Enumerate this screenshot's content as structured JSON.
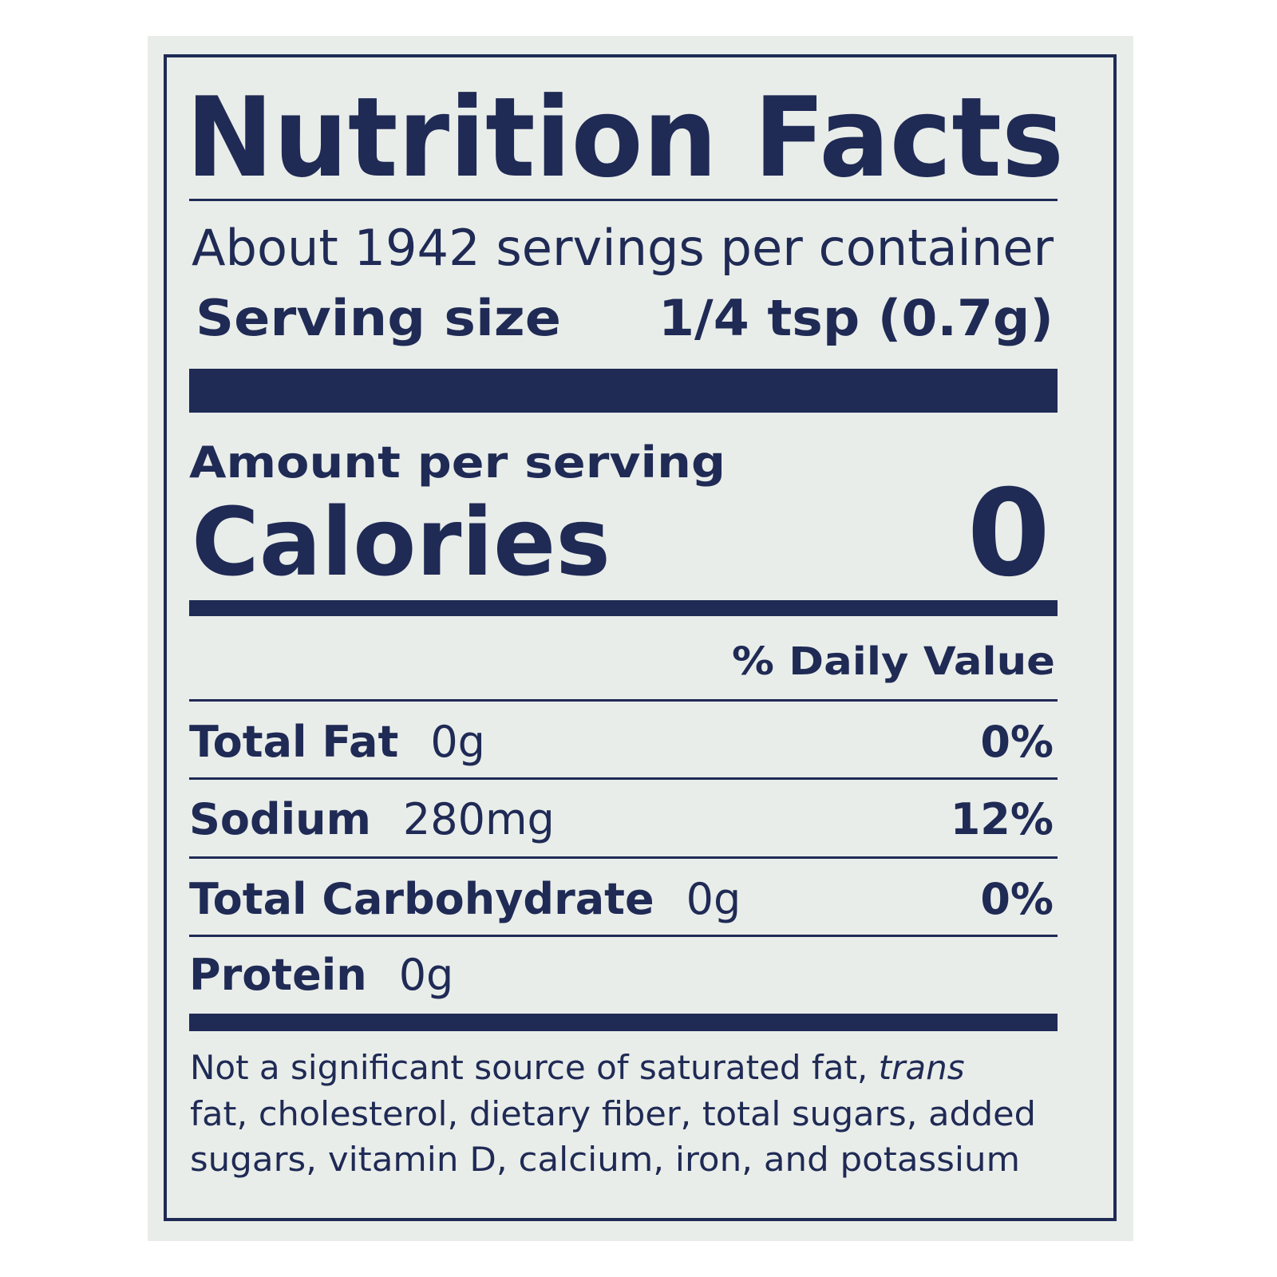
{
  "title": "Nutrition Facts",
  "servings": "About 1942 servings per container",
  "serving_size": {
    "label": "Serving size",
    "value": "1/4 tsp (0.7g)"
  },
  "amount_per_serving": "Amount per serving",
  "calories": {
    "label": "Calories",
    "value": "0"
  },
  "daily_value_header": "% Daily Value",
  "nutrients": [
    {
      "name": "Total Fat",
      "amount": "0g",
      "dv": "0%"
    },
    {
      "name": "Sodium",
      "amount": "280mg",
      "dv": "12%"
    },
    {
      "name": "Total Carbohydrate",
      "amount": "0g",
      "dv": "0%"
    },
    {
      "name": "Protein",
      "amount": "0g"
    }
  ],
  "footnote": [
    "Not a significant source of saturated fat,",
    "trans",
    "fat, cholesterol, dietary fiber, total sugars, added",
    "sugars, vitamin D, calcium, iron, and potassium"
  ]
}
